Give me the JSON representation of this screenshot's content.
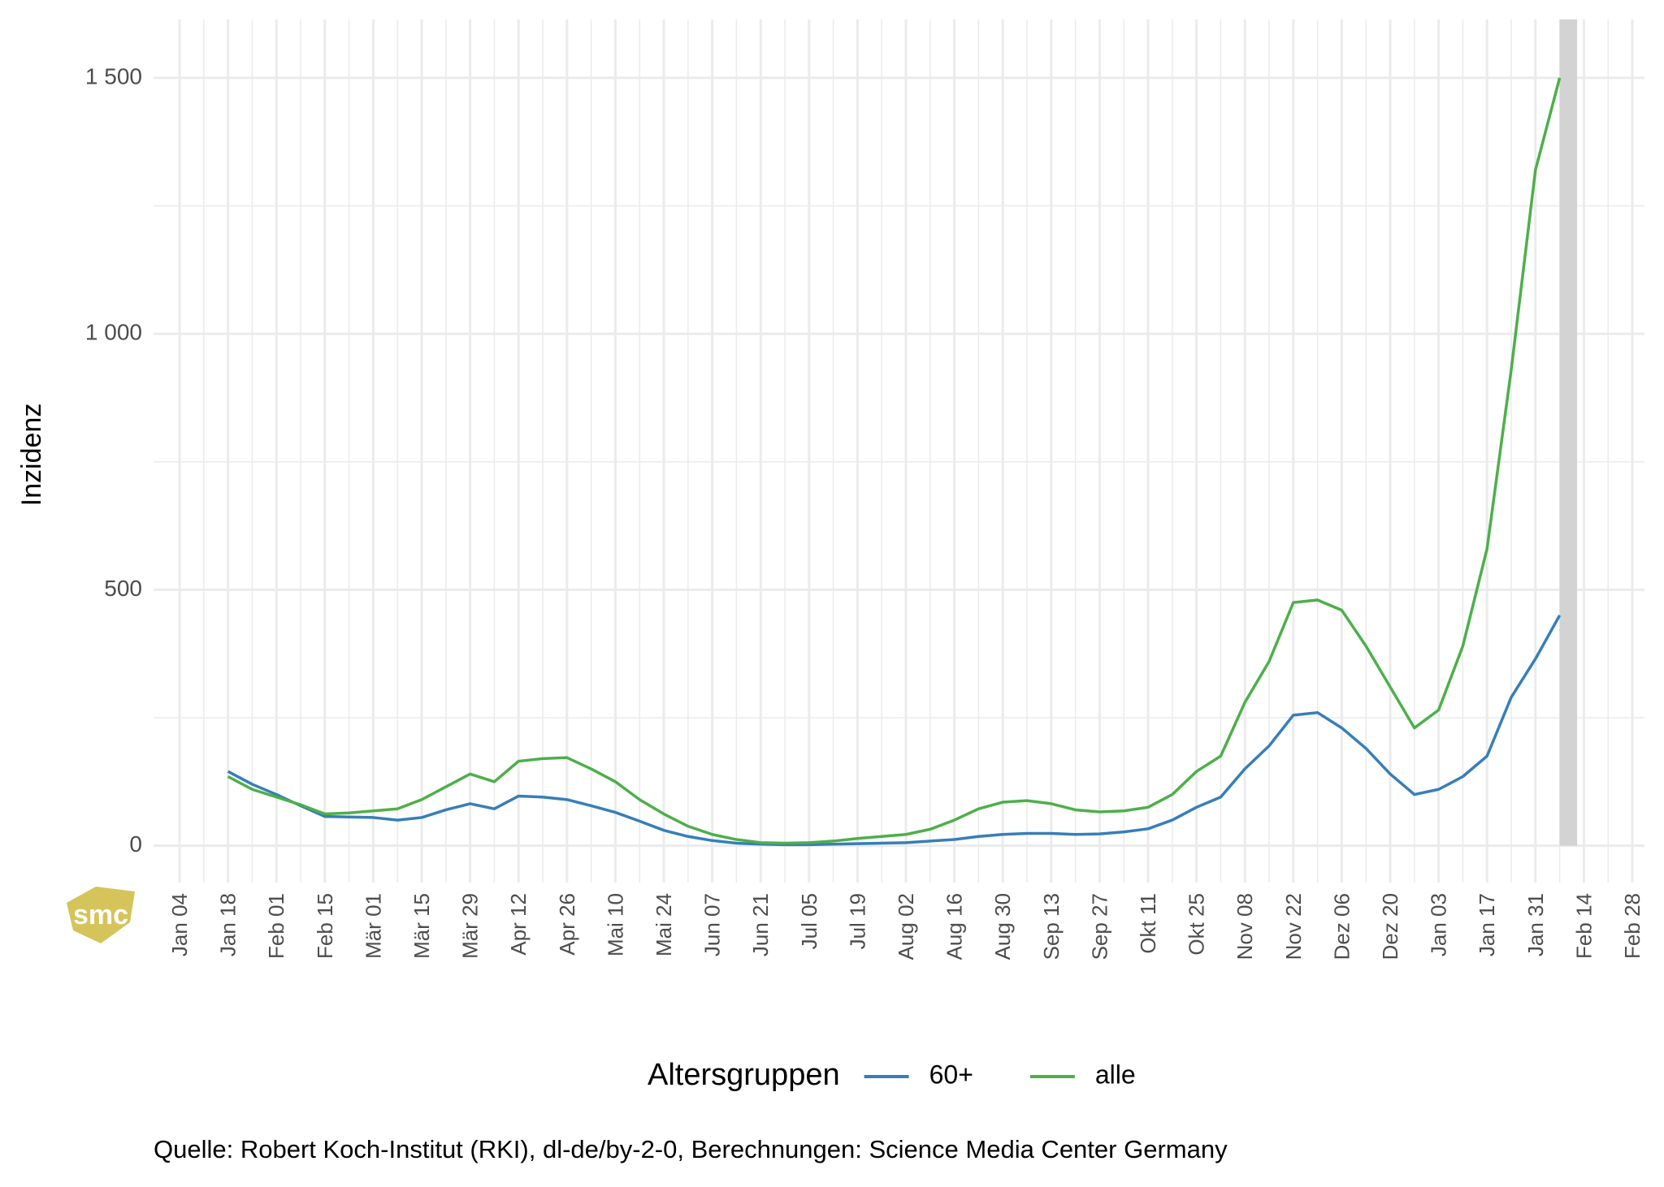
{
  "chart_data": {
    "type": "line",
    "y_label": "Inzidenz",
    "legend_title": "Altersgruppen",
    "caption": "Quelle: Robert Koch-Institut (RKI), dl-de/by-2-0, Berechnungen: Science Media Center Germany",
    "logo": "smc",
    "categories": [
      "Jan 04",
      null,
      "Jan 18",
      null,
      "Feb 01",
      null,
      "Feb 15",
      null,
      "Mär 01",
      null,
      "Mär 15",
      null,
      "Mär 29",
      null,
      "Apr 12",
      null,
      "Apr 26",
      null,
      "Mai 10",
      null,
      "Mai 24",
      null,
      "Jun 07",
      null,
      "Jun 21",
      null,
      "Jul 05",
      null,
      "Jul 19",
      null,
      "Aug 02",
      null,
      "Aug 16",
      null,
      "Aug 30",
      null,
      "Sep 13",
      null,
      "Sep 27",
      null,
      "Okt 11",
      null,
      "Okt 25",
      null,
      "Nov 08",
      null,
      "Nov 22",
      null,
      "Dez 06",
      null,
      "Dez 20",
      null,
      "Jan 03",
      null,
      "Jan 17",
      null,
      "Jan 31",
      null,
      "Feb 14",
      null,
      "Feb 28"
    ],
    "series": [
      {
        "name": "60+",
        "color": "#377eb8",
        "values": [
          null,
          null,
          145,
          120,
          100,
          78,
          57,
          56,
          55,
          50,
          55,
          70,
          82,
          72,
          97,
          95,
          90,
          78,
          65,
          48,
          30,
          18,
          10,
          5,
          3,
          2,
          2,
          3,
          4,
          5,
          6,
          9,
          12,
          18,
          22,
          24,
          24,
          22,
          23,
          27,
          33,
          50,
          75,
          95,
          150,
          195,
          255,
          260,
          230,
          190,
          140,
          100,
          110,
          135,
          175,
          290,
          365,
          450,
          null,
          null,
          null
        ]
      },
      {
        "name": "alle",
        "color": "#4daf4a",
        "values": [
          null,
          null,
          135,
          110,
          95,
          80,
          62,
          64,
          68,
          72,
          90,
          115,
          140,
          125,
          165,
          170,
          172,
          150,
          125,
          90,
          62,
          38,
          22,
          12,
          6,
          5,
          6,
          9,
          14,
          18,
          22,
          32,
          50,
          72,
          85,
          88,
          82,
          70,
          66,
          68,
          75,
          100,
          145,
          175,
          280,
          360,
          475,
          480,
          460,
          390,
          310,
          230,
          265,
          390,
          580,
          930,
          1320,
          1500,
          null,
          null,
          null
        ]
      }
    ],
    "ylim": [
      -72,
      1614
    ],
    "yticks": [
      0,
      500,
      {
        "value": 1000,
        "label": "1 000"
      },
      {
        "value": 1500,
        "label": "1 500"
      }
    ],
    "grid": true
  }
}
